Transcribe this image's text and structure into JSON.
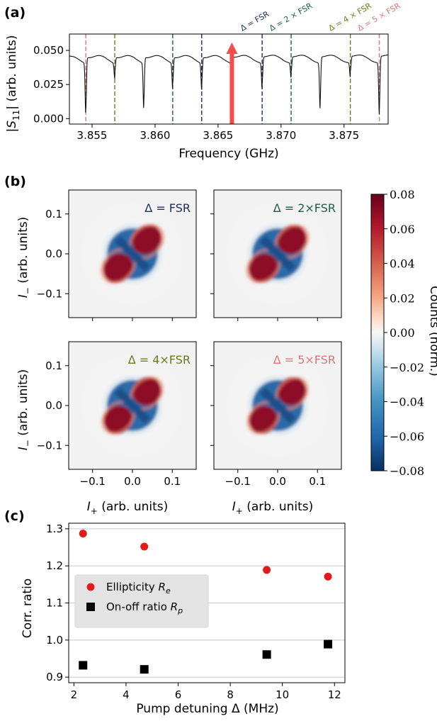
{
  "panel_labels": {
    "a": "(a)",
    "b": "(b)",
    "c": "(c)"
  },
  "colors": {
    "fsr1": "#1f2d5c",
    "fsr2": "#1f5e46",
    "fsr4": "#6e7a1f",
    "fsr5": "#d97a7a",
    "pump_arrow": "#f24c4c",
    "ellipticity": "#e31a1c",
    "onoff": "#000000"
  },
  "chart_data": [
    {
      "type": "line",
      "panel": "(a)",
      "xlabel": "Frequency (GHz)",
      "ylabel": "|S11| (arb. units)",
      "ylabel_main": "|S",
      "ylabel_sub": "11",
      "ylabel_tail": "| (arb. units)",
      "xlim": [
        3.8532,
        3.8785
      ],
      "ylim": [
        -0.004,
        0.062
      ],
      "x_ticks": [
        3.855,
        3.86,
        3.865,
        3.87,
        3.875
      ],
      "x_tick_labels": [
        "3.855",
        "3.860",
        "3.865",
        "3.870",
        "3.875"
      ],
      "y_ticks": [
        0.0,
        0.025,
        0.05
      ],
      "y_tick_labels": [
        "0.000",
        "0.025",
        "0.050"
      ],
      "baseline": 0.044,
      "dips": [
        {
          "x": 3.8545,
          "depth": 0.006
        },
        {
          "x": 3.8568,
          "depth": 0.033
        },
        {
          "x": 3.8591,
          "depth": 0.011
        },
        {
          "x": 3.8614,
          "depth": 0.025
        },
        {
          "x": 3.8637,
          "depth": 0.025
        },
        {
          "x": 3.8661,
          "depth": 0.018
        },
        {
          "x": 3.8685,
          "depth": 0.025
        },
        {
          "x": 3.8708,
          "depth": 0.033
        },
        {
          "x": 3.8731,
          "depth": 0.011
        },
        {
          "x": 3.8755,
          "depth": 0.033
        },
        {
          "x": 3.8778,
          "depth": 0.006
        }
      ],
      "pump_frequency": 3.8661,
      "detuning_lines": [
        {
          "x": 3.8545,
          "color": "fsr5"
        },
        {
          "x": 3.8568,
          "color": "fsr4"
        },
        {
          "x": 3.8614,
          "color": "fsr2"
        },
        {
          "x": 3.8637,
          "color": "fsr1"
        },
        {
          "x": 3.8685,
          "color": "fsr1"
        },
        {
          "x": 3.8708,
          "color": "fsr2"
        },
        {
          "x": 3.8755,
          "color": "fsr4"
        },
        {
          "x": 3.8778,
          "color": "fsr5"
        }
      ],
      "annotations": [
        {
          "text": "Δ = FSR",
          "x": 3.8685,
          "color": "fsr1"
        },
        {
          "text": "Δ = 2 × FSR",
          "x": 3.8708,
          "color": "fsr2"
        },
        {
          "text": "Δ = 4 × FSR",
          "x": 3.8755,
          "color": "fsr4"
        },
        {
          "text": "Δ = 5 × FSR",
          "x": 3.8778,
          "color": "fsr5"
        }
      ]
    },
    {
      "type": "heatmap",
      "panel": "(b)",
      "xlabel_main": "I",
      "xlabel_sub": "+",
      "xlabel_tail": " (arb. units)",
      "ylabel_main": "I",
      "ylabel_sub": "−",
      "ylabel_tail": " (arb. units)",
      "xlim": [
        -0.16,
        0.16
      ],
      "ylim": [
        -0.16,
        0.16
      ],
      "x_ticks": [
        -0.1,
        0.0,
        0.1
      ],
      "x_tick_labels": [
        "−0.1",
        "0.0",
        "0.1"
      ],
      "y_ticks": [
        -0.1,
        0.0,
        0.1
      ],
      "y_tick_labels": [
        "−0.1",
        "0.0",
        "0.1"
      ],
      "subplots": [
        {
          "label": "Δ = FSR",
          "color": "fsr1",
          "ellipticity": 0.1
        },
        {
          "label": "Δ = 2×FSR",
          "color": "fsr2",
          "ellipticity": 0.08
        },
        {
          "label": "Δ = 4×FSR",
          "color": "fsr4",
          "ellipticity": 0.06
        },
        {
          "label": "Δ = 5×FSR",
          "color": "fsr5",
          "ellipticity": 0.05
        }
      ],
      "colorbar": {
        "label": "Counts (norm.)",
        "range": [
          -0.08,
          0.08
        ],
        "ticks": [
          0.08,
          0.06,
          0.04,
          0.02,
          0.0,
          -0.02,
          -0.04,
          -0.06,
          -0.08
        ],
        "tick_labels": [
          "0.08",
          "0.06",
          "0.04",
          "0.02",
          "0.00",
          "−0.02",
          "−0.04",
          "−0.06",
          "−0.08"
        ],
        "colormap": "RdBu_r"
      }
    },
    {
      "type": "scatter",
      "panel": "(c)",
      "xlabel": "Pump detuning Δ (MHz)",
      "ylabel": "Corr. ratio",
      "xlim": [
        1.8,
        12.4
      ],
      "ylim": [
        0.885,
        1.315
      ],
      "x_ticks": [
        2,
        4,
        6,
        8,
        10,
        12
      ],
      "x_tick_labels": [
        "2",
        "4",
        "6",
        "8",
        "10",
        "12"
      ],
      "y_ticks": [
        0.9,
        1.0,
        1.1,
        1.2,
        1.3
      ],
      "y_tick_labels": [
        "0.9",
        "1.0",
        "1.1",
        "1.2",
        "1.3"
      ],
      "grid": "horizontal",
      "legend_position": "center-left",
      "series": [
        {
          "name": "Ellipticity",
          "symbol_main": "R",
          "symbol_sub": "e",
          "marker": "circle",
          "color": "ellipticity",
          "x": [
            2.35,
            4.7,
            9.4,
            11.75
          ],
          "values": [
            1.287,
            1.252,
            1.189,
            1.171
          ]
        },
        {
          "name": "On-off ratio",
          "symbol_main": "R",
          "symbol_sub": "p",
          "marker": "square",
          "color": "onoff",
          "x": [
            2.35,
            4.7,
            9.4,
            11.75
          ],
          "values": [
            0.932,
            0.921,
            0.961,
            0.989
          ]
        }
      ]
    }
  ]
}
